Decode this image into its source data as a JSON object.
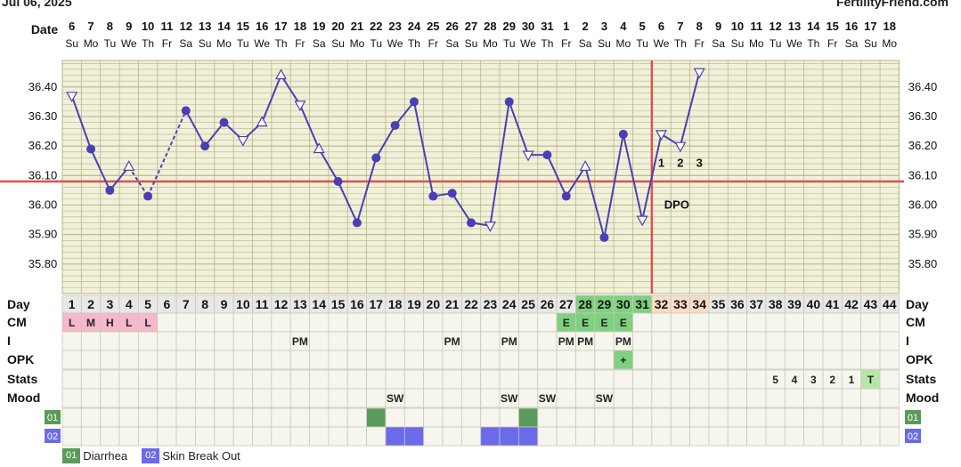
{
  "header": {
    "date_text": "Jul 06, 2025",
    "site": "FertilityFriend.com"
  },
  "row_labels": {
    "date": "Date",
    "day": "Day",
    "cm": "CM",
    "intercourse": "I",
    "opk": "OPK",
    "stats": "Stats",
    "mood": "Mood",
    "symptom1_code": "01",
    "symptom2_code": "02"
  },
  "legend": [
    {
      "code": "01",
      "label": "Diarrhea",
      "color": "#5a9a5a"
    },
    {
      "code": "02",
      "label": "Skin Break Out",
      "color": "#6a6aea"
    }
  ],
  "colors": {
    "line": "#4a3fb5",
    "coverline": "#d9534f",
    "ovulation_line": "#d9534f",
    "grid_fill": "#f1f1d9",
    "grid_line": "#b8b48a",
    "fertile_cm": "#7fd17f",
    "menses": "#f5b8cc",
    "luteal": "#f9dcc8",
    "day_cell": "#e8e8e8",
    "stats_green": "#b8e6a8"
  },
  "chart_data": {
    "type": "line",
    "cycle_days": [
      1,
      2,
      3,
      4,
      5,
      6,
      7,
      8,
      9,
      10,
      11,
      12,
      13,
      14,
      15,
      16,
      17,
      18,
      19,
      20,
      21,
      22,
      23,
      24,
      25,
      26,
      27,
      28,
      29,
      30,
      31,
      32,
      33,
      34,
      35,
      36,
      37,
      38,
      39,
      40,
      41,
      42,
      43,
      44
    ],
    "dates": [
      "6",
      "7",
      "8",
      "9",
      "10",
      "11",
      "12",
      "13",
      "14",
      "15",
      "16",
      "17",
      "18",
      "19",
      "20",
      "21",
      "22",
      "23",
      "24",
      "25",
      "26",
      "27",
      "28",
      "29",
      "30",
      "31",
      "1",
      "2",
      "3",
      "4",
      "5",
      "6",
      "7",
      "8",
      "9",
      "10",
      "11",
      "12",
      "13",
      "14",
      "15",
      "16",
      "17",
      "18"
    ],
    "weekdays": [
      "Su",
      "Mo",
      "Tu",
      "We",
      "Th",
      "Fr",
      "Sa",
      "Su",
      "Mo",
      "Tu",
      "We",
      "Th",
      "Fr",
      "Sa",
      "Su",
      "Mo",
      "Tu",
      "We",
      "Th",
      "Fr",
      "Sa",
      "Su",
      "Mo",
      "Tu",
      "We",
      "Th",
      "Fr",
      "Sa",
      "Su",
      "Mo",
      "Tu",
      "We",
      "Th",
      "Fr",
      "Sa",
      "Su",
      "Mo",
      "Tu",
      "We",
      "Th",
      "Fr",
      "Sa",
      "Su",
      "Mo"
    ],
    "temperatures": [
      36.37,
      36.19,
      36.05,
      36.13,
      36.03,
      null,
      36.32,
      36.2,
      36.28,
      36.22,
      36.28,
      36.44,
      36.34,
      36.19,
      36.08,
      35.94,
      36.16,
      36.27,
      36.35,
      36.03,
      36.04,
      35.94,
      35.93,
      36.35,
      36.17,
      36.17,
      36.03,
      36.13,
      35.89,
      36.24,
      35.95,
      36.24,
      36.2,
      36.45
    ],
    "markers": [
      "open-down",
      "filled",
      "filled",
      "open-up",
      "filled",
      null,
      "filled",
      "filled",
      "filled",
      "open-down",
      "open-up",
      "open-up",
      "open-down",
      "open-up",
      "filled",
      "filled",
      "filled",
      "filled",
      "filled",
      "filled",
      "filled",
      "filled",
      "open-down",
      "filled",
      "open-down",
      "filled",
      "filled",
      "open-up",
      "filled",
      "filled",
      "open-down",
      "open-down",
      "open-down",
      "open-down"
    ],
    "dashed_segments": [
      [
        4,
        5
      ]
    ],
    "y_ticks": [
      "36.40",
      "36.30",
      "36.20",
      "36.10",
      "36.00",
      "35.90",
      "35.80"
    ],
    "y_tick_values": [
      36.4,
      36.3,
      36.2,
      36.1,
      36.0,
      35.9,
      35.8
    ],
    "ylim": [
      35.7,
      36.49
    ],
    "coverline": 36.08,
    "ovulation_day": 31,
    "dpo_numbers": [
      "1",
      "2",
      "3"
    ],
    "dpo_label": "DPO"
  },
  "rows": {
    "cm": {
      "1": "L",
      "2": "M",
      "3": "H",
      "4": "L",
      "5": "L",
      "27": "E",
      "28": "E",
      "29": "E",
      "30": "E"
    },
    "intercourse": {
      "13": "PM",
      "21": "PM",
      "24": "PM",
      "27": "PM",
      "28": "PM",
      "30": "PM"
    },
    "opk": {
      "30": "+"
    },
    "stats": {
      "38": "5",
      "39": "4",
      "40": "3",
      "41": "2",
      "42": "1",
      "43": "T"
    },
    "mood": {
      "18": "SW",
      "24": "SW",
      "26": "SW",
      "29": "SW"
    },
    "symptom1_days": [
      17,
      25
    ],
    "symptom2_days": [
      18,
      19,
      23,
      24,
      25
    ]
  }
}
